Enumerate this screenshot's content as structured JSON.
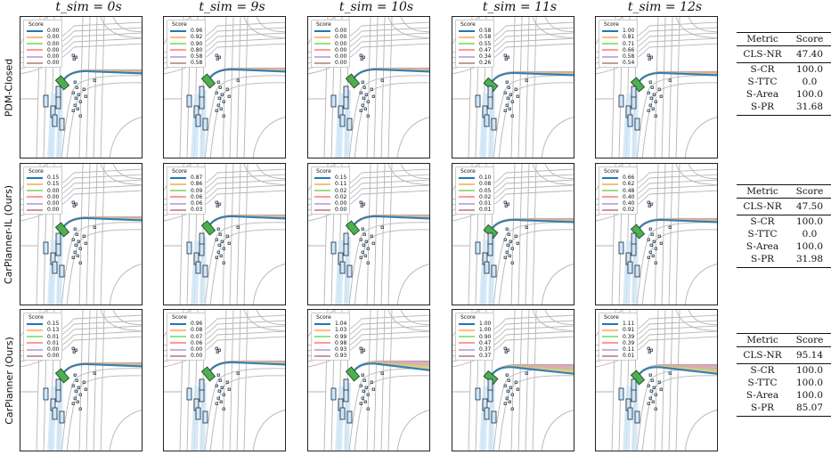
{
  "time_labels": [
    "t_sim = 0s",
    "t_sim = 9s",
    "t_sim = 10s",
    "t_sim = 11s",
    "t_sim = 12s"
  ],
  "legend_title": "Score",
  "colors": [
    "#1f77b4",
    "#ffbb78",
    "#98df8a",
    "#ff9896",
    "#c5b0d5",
    "#c49c94"
  ],
  "rows": [
    {
      "label": "PDM-Closed",
      "scores": [
        [
          "0.00",
          "0.00",
          "0.00",
          "0.00",
          "0.00",
          "0.00"
        ],
        [
          "0.96",
          "0.92",
          "0.90",
          "0.80",
          "0.58",
          "0.58"
        ],
        [
          "0.00",
          "0.00",
          "0.00",
          "0.00",
          "0.00",
          "0.00"
        ],
        [
          "0.58",
          "0.58",
          "0.55",
          "0.47",
          "0.34",
          "0.26"
        ],
        [
          "1.00",
          "0.81",
          "0.71",
          "0.66",
          "0.58",
          "0.54"
        ]
      ],
      "metrics": {
        "header": [
          "Metric",
          "Score"
        ],
        "main": [
          "CLS-NR",
          "47.40"
        ],
        "sub": [
          [
            "S-CR",
            "100.0"
          ],
          [
            "S-TTC",
            "0.0"
          ],
          [
            "S-Area",
            "100.0"
          ],
          [
            "S-PR",
            "31.68"
          ]
        ]
      }
    },
    {
      "label": "CarPlanner-IL (Ours)",
      "scores": [
        [
          "0.15",
          "0.15",
          "0.00",
          "0.00",
          "0.00",
          "0.00"
        ],
        [
          "0.87",
          "0.86",
          "0.09",
          "0.06",
          "0.06",
          "0.03"
        ],
        [
          "0.15",
          "0.11",
          "0.02",
          "0.02",
          "0.00",
          "0.00"
        ],
        [
          "0.10",
          "0.08",
          "0.05",
          "0.02",
          "0.01",
          "0.01"
        ],
        [
          "0.66",
          "0.62",
          "0.48",
          "0.40",
          "0.40",
          "0.02"
        ]
      ],
      "metrics": {
        "header": [
          "Metric",
          "Score"
        ],
        "main": [
          "CLS-NR",
          "47.50"
        ],
        "sub": [
          [
            "S-CR",
            "100.0"
          ],
          [
            "S-TTC",
            "0.0"
          ],
          [
            "S-Area",
            "100.0"
          ],
          [
            "S-PR",
            "31.98"
          ]
        ]
      }
    },
    {
      "label": "CarPlanner (Ours)",
      "scores": [
        [
          "0.15",
          "0.13",
          "0.01",
          "0.01",
          "0.00",
          "0.00"
        ],
        [
          "0.96",
          "0.08",
          "0.07",
          "0.06",
          "0.00",
          "0.00"
        ],
        [
          "1.04",
          "1.03",
          "0.99",
          "0.98",
          "0.93",
          "0.93"
        ],
        [
          "1.00",
          "1.00",
          "0.90",
          "0.47",
          "0.37",
          "0.37"
        ],
        [
          "1.11",
          "0.91",
          "0.39",
          "0.39",
          "0.11",
          "0.01"
        ]
      ],
      "metrics": {
        "header": [
          "Metric",
          "Score"
        ],
        "main": [
          "CLS-NR",
          "95.14"
        ],
        "sub": [
          [
            "S-CR",
            "100.0"
          ],
          [
            "S-TTC",
            "100.0"
          ],
          [
            "S-Area",
            "100.0"
          ],
          [
            "S-PR",
            "85.07"
          ]
        ]
      }
    }
  ]
}
